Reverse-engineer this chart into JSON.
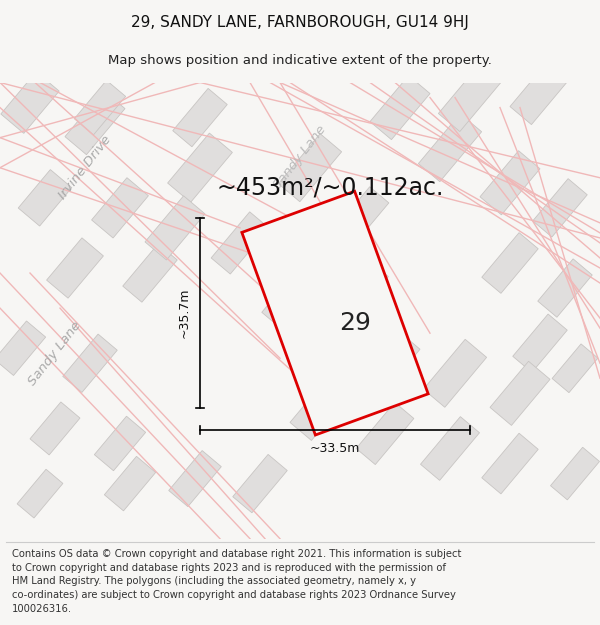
{
  "title": "29, SANDY LANE, FARNBOROUGH, GU14 9HJ",
  "subtitle": "Map shows position and indicative extent of the property.",
  "area_text": "~453m²/~0.112ac.",
  "property_label": "29",
  "dim_vertical": "~35.7m",
  "dim_horizontal": "~33.5m",
  "footer_text": "Contains OS data © Crown copyright and database right 2021. This information is subject\nto Crown copyright and database rights 2023 and is reproduced with the permission of\nHM Land Registry. The polygons (including the associated geometry, namely x, y\nco-ordinates) are subject to Crown copyright and database rights 2023 Ordnance Survey\n100026316.",
  "bg_color": "#f7f6f4",
  "map_bg_color": "#f7f6f4",
  "property_fill": "#f7f6f4",
  "property_edge_color": "#dd0000",
  "road_line_color": "#f0b8b8",
  "building_fill": "#e0dedd",
  "building_edge": "#c8c5c3",
  "title_fontsize": 11,
  "subtitle_fontsize": 9.5,
  "area_fontsize": 17,
  "label_fontsize": 18,
  "dim_fontsize": 9,
  "street_fontsize": 9.5,
  "footer_fontsize": 7.2
}
